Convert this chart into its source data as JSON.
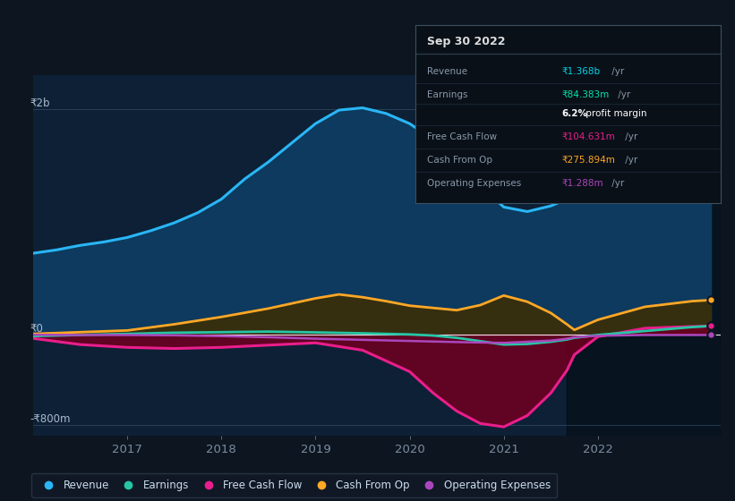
{
  "bg_color": "#0d1520",
  "plot_bg_color": "#0d2035",
  "shaded_region_start": 2021.67,
  "ylim": [
    -900,
    2300
  ],
  "xlim": [
    2016.0,
    2023.3
  ],
  "zero_y": 0,
  "ytick_2b_y": 2000,
  "ytick_neg800_y": -800,
  "ytick_labels": {
    "2b": "₹2b",
    "0": "₹0",
    "neg800": "-₹800m"
  },
  "tooltip": {
    "title": "Sep 30 2022",
    "rows": [
      {
        "label": "Revenue",
        "value": "₹1.368b",
        "suffix": "/yr",
        "color": "#00d4e8"
      },
      {
        "label": "Earnings",
        "value": "₹84.383m",
        "suffix": "/yr",
        "color": "#00e5b0"
      },
      {
        "label": "",
        "value": "6.2%",
        "suffix": " profit margin",
        "color": "#ffffff"
      },
      {
        "label": "Free Cash Flow",
        "value": "₹104.631m",
        "suffix": "/yr",
        "color": "#e91e8c"
      },
      {
        "label": "Cash From Op",
        "value": "₹275.894m",
        "suffix": "/yr",
        "color": "#ffa726"
      },
      {
        "label": "Operating Expenses",
        "value": "₹1.288m",
        "suffix": "/yr",
        "color": "#ab47bc"
      }
    ]
  },
  "legend": [
    {
      "label": "Revenue",
      "color": "#29b6f6"
    },
    {
      "label": "Earnings",
      "color": "#26c6a5"
    },
    {
      "label": "Free Cash Flow",
      "color": "#e91e8c"
    },
    {
      "label": "Cash From Op",
      "color": "#ffa726"
    },
    {
      "label": "Operating Expenses",
      "color": "#ab47bc"
    }
  ],
  "revenue": {
    "x": [
      2016.0,
      2016.25,
      2016.5,
      2016.75,
      2017.0,
      2017.25,
      2017.5,
      2017.75,
      2018.0,
      2018.25,
      2018.5,
      2018.75,
      2019.0,
      2019.25,
      2019.5,
      2019.75,
      2020.0,
      2020.25,
      2020.5,
      2020.75,
      2021.0,
      2021.25,
      2021.5,
      2021.67,
      2021.75,
      2022.0,
      2022.25,
      2022.5,
      2022.75,
      2023.0,
      2023.2
    ],
    "y": [
      720,
      750,
      790,
      820,
      860,
      920,
      990,
      1080,
      1200,
      1380,
      1530,
      1700,
      1870,
      1990,
      2010,
      1960,
      1870,
      1730,
      1550,
      1320,
      1130,
      1090,
      1140,
      1200,
      1230,
      1400,
      1580,
      1740,
      1870,
      1950,
      1970
    ],
    "color": "#29b6f6",
    "fill_color": "#0d3a5e",
    "linewidth": 2.2
  },
  "earnings": {
    "x": [
      2016.0,
      2016.5,
      2017.0,
      2017.5,
      2018.0,
      2018.5,
      2019.0,
      2019.5,
      2020.0,
      2020.25,
      2020.5,
      2020.75,
      2021.0,
      2021.25,
      2021.5,
      2021.67,
      2021.75,
      2022.0,
      2022.5,
      2023.0,
      2023.2
    ],
    "y": [
      -15,
      -5,
      5,
      15,
      20,
      25,
      18,
      10,
      0,
      -10,
      -30,
      -60,
      -90,
      -85,
      -65,
      -45,
      -30,
      -5,
      30,
      65,
      75
    ],
    "color": "#26c6a5",
    "linewidth": 2.0
  },
  "free_cash_flow": {
    "x": [
      2016.0,
      2016.5,
      2017.0,
      2017.5,
      2018.0,
      2018.5,
      2019.0,
      2019.5,
      2020.0,
      2020.25,
      2020.5,
      2020.75,
      2021.0,
      2021.25,
      2021.5,
      2021.67,
      2021.75,
      2022.0,
      2022.5,
      2023.0,
      2023.2
    ],
    "y": [
      -35,
      -90,
      -115,
      -125,
      -115,
      -95,
      -75,
      -140,
      -330,
      -520,
      -680,
      -790,
      -820,
      -720,
      -520,
      -320,
      -180,
      -20,
      55,
      70,
      75
    ],
    "color": "#e91e8c",
    "fill_color": "#6b0020",
    "linewidth": 2.2
  },
  "cash_from_op": {
    "x": [
      2016.0,
      2016.5,
      2017.0,
      2017.5,
      2018.0,
      2018.5,
      2019.0,
      2019.25,
      2019.5,
      2019.75,
      2020.0,
      2020.25,
      2020.5,
      2020.75,
      2021.0,
      2021.25,
      2021.5,
      2021.67,
      2021.75,
      2022.0,
      2022.5,
      2023.0,
      2023.2
    ],
    "y": [
      5,
      20,
      35,
      90,
      155,
      230,
      320,
      355,
      330,
      295,
      255,
      235,
      215,
      260,
      345,
      290,
      190,
      90,
      40,
      130,
      245,
      295,
      305
    ],
    "color": "#ffa726",
    "fill_color": "#3a2e08",
    "linewidth": 2.0
  },
  "operating_expenses": {
    "x": [
      2016.0,
      2016.5,
      2017.0,
      2017.5,
      2018.0,
      2018.5,
      2019.0,
      2019.5,
      2020.0,
      2020.5,
      2021.0,
      2021.5,
      2021.67,
      2021.75,
      2022.0,
      2022.5,
      2023.0,
      2023.2
    ],
    "y": [
      -3,
      -5,
      -5,
      -8,
      -15,
      -25,
      -38,
      -48,
      -58,
      -68,
      -75,
      -55,
      -38,
      -25,
      -12,
      -5,
      -5,
      -5
    ],
    "color": "#ab47bc",
    "linewidth": 1.8
  }
}
